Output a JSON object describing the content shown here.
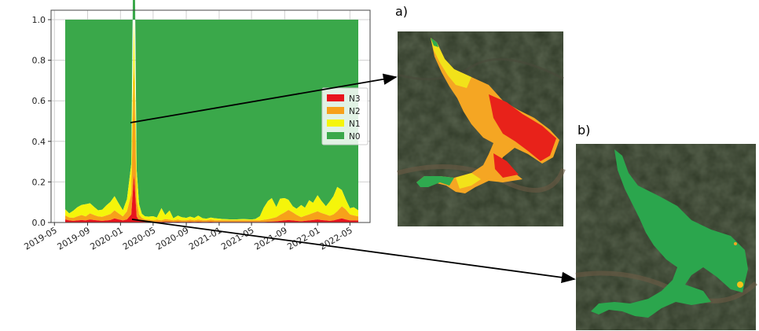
{
  "chart_data": {
    "type": "area",
    "title": "",
    "xlabel": "",
    "ylabel": "",
    "ylim": [
      0,
      1.0
    ],
    "yticks": [
      "0.0",
      "0.2",
      "0.4",
      "0.6",
      "0.8",
      "1.0"
    ],
    "xticks": [
      "2019-05",
      "2019-09",
      "2020-01",
      "2020-05",
      "2020-09",
      "2021-01",
      "2021-05",
      "2021-09",
      "2022-01",
      "2022-05"
    ],
    "grid": true,
    "legend_position": "right",
    "x": [
      "2019-06-10",
      "2019-06-25",
      "2019-07-10",
      "2019-07-25",
      "2019-08-10",
      "2019-08-25",
      "2019-09-10",
      "2019-09-25",
      "2019-10-10",
      "2019-10-25",
      "2019-11-10",
      "2019-11-25",
      "2019-12-10",
      "2019-12-25",
      "2020-01-10",
      "2020-01-25",
      "2020-02-10",
      "2020-02-20",
      "2020-03-01",
      "2020-03-10",
      "2020-03-20",
      "2020-04-01",
      "2020-04-15",
      "2020-05-01",
      "2020-05-15",
      "2020-06-01",
      "2020-06-15",
      "2020-07-01",
      "2020-07-15",
      "2020-08-01",
      "2020-08-15",
      "2020-09-01",
      "2020-09-15",
      "2020-10-01",
      "2020-10-15",
      "2020-11-01",
      "2020-11-15",
      "2020-12-01",
      "2020-12-15",
      "2021-01-01",
      "2021-01-15",
      "2021-02-01",
      "2021-02-15",
      "2021-03-01",
      "2021-03-15",
      "2021-04-01",
      "2021-04-15",
      "2021-05-01",
      "2021-05-15",
      "2021-06-01",
      "2021-06-15",
      "2021-07-01",
      "2021-07-15",
      "2021-08-01",
      "2021-08-15",
      "2021-09-01",
      "2021-09-15",
      "2021-10-01",
      "2021-10-15",
      "2021-11-01",
      "2021-11-15",
      "2021-12-01",
      "2021-12-15",
      "2022-01-01",
      "2022-01-15",
      "2022-02-01",
      "2022-02-15",
      "2022-03-01",
      "2022-03-15",
      "2022-04-01",
      "2022-04-15",
      "2022-05-01",
      "2022-05-15",
      "2022-06-01"
    ],
    "series": [
      {
        "name": "N3",
        "color": "#e8141d",
        "values": [
          0.015,
          0.01,
          0.008,
          0.01,
          0.012,
          0.01,
          0.015,
          0.012,
          0.01,
          0.008,
          0.01,
          0.012,
          0.02,
          0.015,
          0.01,
          0.015,
          0.04,
          0.24,
          0.03,
          0.01,
          0.008,
          0.005,
          0.004,
          0.003,
          0.004,
          0.003,
          0.005,
          0.004,
          0.003,
          0.004,
          0.003,
          0.003,
          0.004,
          0.003,
          0.004,
          0.003,
          0.003,
          0.004,
          0.003,
          0.003,
          0.003,
          0.003,
          0.003,
          0.003,
          0.003,
          0.003,
          0.003,
          0.003,
          0.003,
          0.003,
          0.003,
          0.004,
          0.005,
          0.006,
          0.008,
          0.01,
          0.012,
          0.01,
          0.008,
          0.006,
          0.008,
          0.01,
          0.012,
          0.015,
          0.012,
          0.01,
          0.008,
          0.01,
          0.015,
          0.02,
          0.015,
          0.01,
          0.01,
          0.01
        ]
      },
      {
        "name": "N2",
        "color": "#f7a11a",
        "values": [
          0.02,
          0.015,
          0.015,
          0.02,
          0.025,
          0.02,
          0.03,
          0.025,
          0.02,
          0.02,
          0.025,
          0.03,
          0.04,
          0.03,
          0.02,
          0.04,
          0.1,
          0.55,
          0.08,
          0.03,
          0.015,
          0.01,
          0.01,
          0.008,
          0.01,
          0.008,
          0.012,
          0.01,
          0.008,
          0.01,
          0.008,
          0.008,
          0.01,
          0.008,
          0.01,
          0.008,
          0.008,
          0.01,
          0.008,
          0.008,
          0.008,
          0.008,
          0.008,
          0.008,
          0.008,
          0.008,
          0.008,
          0.008,
          0.008,
          0.008,
          0.01,
          0.012,
          0.015,
          0.02,
          0.03,
          0.04,
          0.05,
          0.04,
          0.03,
          0.02,
          0.025,
          0.03,
          0.035,
          0.04,
          0.035,
          0.03,
          0.025,
          0.03,
          0.04,
          0.06,
          0.05,
          0.03,
          0.025,
          0.02
        ]
      },
      {
        "name": "N1",
        "color": "#f5f50a",
        "values": [
          0.03,
          0.02,
          0.035,
          0.045,
          0.05,
          0.06,
          0.05,
          0.04,
          0.03,
          0.035,
          0.05,
          0.06,
          0.07,
          0.05,
          0.03,
          0.06,
          0.15,
          0.91,
          0.15,
          0.05,
          0.02,
          0.015,
          0.015,
          0.02,
          0.01,
          0.06,
          0.02,
          0.045,
          0.01,
          0.02,
          0.015,
          0.012,
          0.015,
          0.012,
          0.02,
          0.01,
          0.008,
          0.01,
          0.01,
          0.008,
          0.006,
          0.005,
          0.004,
          0.004,
          0.005,
          0.006,
          0.005,
          0.004,
          0.006,
          0.02,
          0.06,
          0.09,
          0.1,
          0.05,
          0.08,
          0.07,
          0.05,
          0.03,
          0.03,
          0.06,
          0.04,
          0.07,
          0.05,
          0.08,
          0.06,
          0.04,
          0.07,
          0.09,
          0.12,
          0.08,
          0.05,
          0.03,
          0.04,
          0.03
        ]
      },
      {
        "name": "N0",
        "color": "#3aa84a",
        "values": [
          0.935,
          0.955,
          0.942,
          0.925,
          0.913,
          0.91,
          0.905,
          0.923,
          0.94,
          0.937,
          0.915,
          0.898,
          0.87,
          0.905,
          0.94,
          0.885,
          0.71,
          0.0,
          0.74,
          0.91,
          0.957,
          0.97,
          0.971,
          0.969,
          0.976,
          0.929,
          0.963,
          0.941,
          0.979,
          0.966,
          0.974,
          0.977,
          0.971,
          0.977,
          0.966,
          0.979,
          0.981,
          0.976,
          0.979,
          0.981,
          0.983,
          0.984,
          0.985,
          0.985,
          0.984,
          0.983,
          0.984,
          0.985,
          0.983,
          0.969,
          0.927,
          0.894,
          0.88,
          0.924,
          0.882,
          0.88,
          0.888,
          0.92,
          0.932,
          0.914,
          0.927,
          0.89,
          0.903,
          0.865,
          0.893,
          0.92,
          0.897,
          0.87,
          0.825,
          0.84,
          0.885,
          0.93,
          0.925,
          0.94
        ]
      }
    ]
  },
  "annotations": {
    "panel_a_label": "a)",
    "panel_b_label": "b)"
  },
  "images": {
    "panel_a": {
      "icon": "satellite-image-reservoir-severity-map"
    },
    "panel_b": {
      "icon": "satellite-image-reservoir-healthy-map"
    }
  }
}
